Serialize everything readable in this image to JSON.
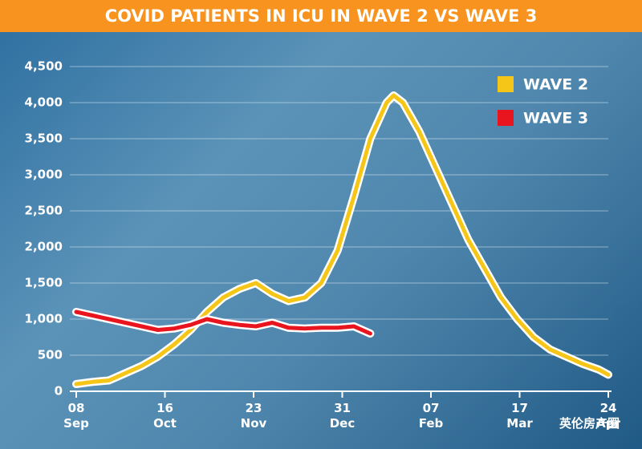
{
  "chart_data": {
    "type": "line",
    "title": "COVID PATIENTS IN ICU IN WAVE 2 VS WAVE 3",
    "x": [
      "08 Sep",
      "15 Sep",
      "22 Sep",
      "29 Sep",
      "06 Oct",
      "13 Oct",
      "20 Oct",
      "27 Oct",
      "03 Nov",
      "10 Nov",
      "17 Nov",
      "24 Nov",
      "01 Dec",
      "08 Dec",
      "15 Dec",
      "22 Dec",
      "29 Dec",
      "05 Jan",
      "12 Jan",
      "19 Jan",
      "22 Jan",
      "26 Jan",
      "02 Feb",
      "09 Feb",
      "16 Feb",
      "23 Feb",
      "02 Mar",
      "09 Mar",
      "16 Mar",
      "23 Mar",
      "30 Mar",
      "06 Apr",
      "13 Apr",
      "20 Apr",
      "24 Apr"
    ],
    "series": [
      {
        "name": "WAVE 2",
        "color": "#f5c518",
        "values": [
          100,
          130,
          150,
          250,
          350,
          480,
          650,
          850,
          1100,
          1300,
          1420,
          1500,
          1350,
          1250,
          1300,
          1500,
          1950,
          2700,
          3500,
          4000,
          4100,
          4000,
          3600,
          3100,
          2600,
          2100,
          1700,
          1300,
          1000,
          750,
          580,
          480,
          380,
          300,
          230
        ]
      },
      {
        "name": "WAVE 3",
        "color": "#e8141e",
        "values": [
          1100,
          1050,
          1000,
          950,
          900,
          850,
          870,
          920,
          1000,
          950,
          920,
          900,
          950,
          880,
          870,
          880,
          880,
          900,
          800,
          null,
          null,
          null,
          null,
          null,
          null,
          null,
          null,
          null,
          null,
          null,
          null,
          null,
          null,
          null,
          null
        ]
      }
    ],
    "xticks": [
      "08 Sep",
      "16 Oct",
      "23 Nov",
      "31 Dec",
      "07 Feb",
      "17 Mar",
      "24 Apr"
    ],
    "ylim": [
      0,
      4500
    ],
    "yticks": [
      0,
      500,
      {
        "value": 1000,
        "label": "1,000"
      },
      {
        "value": 1500,
        "label": "1,500"
      },
      {
        "value": 2000,
        "label": "2,000"
      },
      {
        "value": 2500,
        "label": "2,500"
      },
      {
        "value": 3000,
        "label": "3,000"
      },
      {
        "value": 3500,
        "label": "3,500"
      },
      {
        "value": 4000,
        "label": "4,000"
      },
      {
        "value": 4500,
        "label": "4,500"
      }
    ],
    "grid": true,
    "legend": "top-right",
    "watermark": "英伦房产圈"
  }
}
